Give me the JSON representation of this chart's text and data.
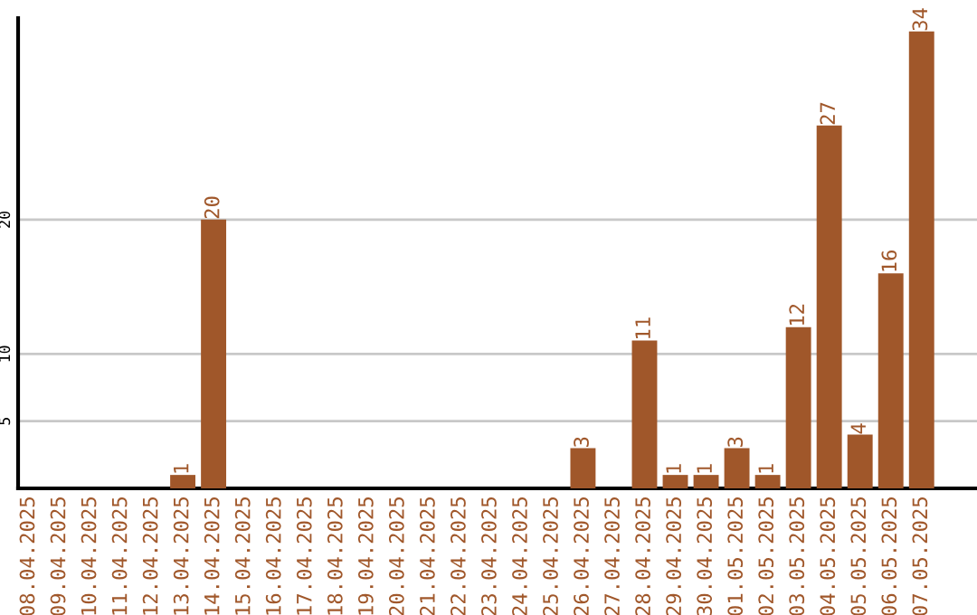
{
  "chart_data": {
    "type": "bar",
    "categories": [
      "08.04.2025",
      "09.04.2025",
      "10.04.2025",
      "11.04.2025",
      "12.04.2025",
      "13.04.2025",
      "14.04.2025",
      "15.04.2025",
      "16.04.2025",
      "17.04.2025",
      "18.04.2025",
      "19.04.2025",
      "20.04.2025",
      "21.04.2025",
      "22.04.2025",
      "23.04.2025",
      "24.04.2025",
      "25.04.2025",
      "26.04.2025",
      "27.04.2025",
      "28.04.2025",
      "29.04.2025",
      "30.04.2025",
      "01.05.2025",
      "02.05.2025",
      "03.05.2025",
      "04.05.2025",
      "05.05.2025",
      "06.05.2025",
      "07.05.2025"
    ],
    "values": [
      0,
      0,
      0,
      0,
      0,
      1,
      20,
      0,
      0,
      0,
      0,
      0,
      0,
      0,
      0,
      0,
      0,
      0,
      3,
      0,
      11,
      1,
      1,
      3,
      1,
      12,
      27,
      4,
      16,
      34
    ],
    "value_labels": [
      null,
      null,
      null,
      null,
      null,
      "1",
      "20",
      null,
      null,
      null,
      null,
      null,
      null,
      null,
      null,
      null,
      null,
      null,
      "3",
      null,
      "11",
      "1",
      "1",
      "3",
      "1",
      "12",
      "27",
      "4",
      "16",
      "34"
    ],
    "color": "#a0572a",
    "ylim": [
      0,
      35
    ],
    "yticks": [
      5,
      10,
      20
    ],
    "grid": "y"
  }
}
